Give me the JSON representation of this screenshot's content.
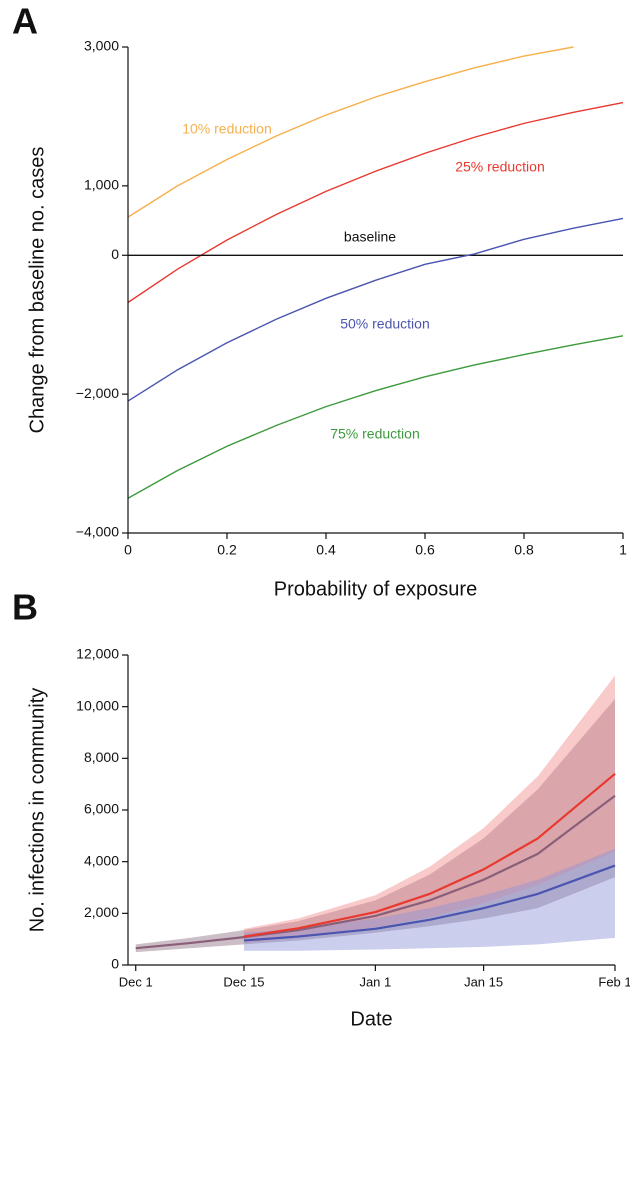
{
  "chart_data": [
    {
      "type": "line",
      "panel": "A",
      "y_label": "Change from baseline no. cases",
      "x_label": "Probability of exposure",
      "xlim": [
        0,
        1
      ],
      "xticks": [
        0,
        0.2,
        0.4,
        0.6,
        0.8,
        1
      ],
      "ylim": [
        -4000,
        3000
      ],
      "yticks": [
        {
          "value": -4000,
          "label": "−4,000"
        },
        {
          "value": -2000,
          "label": "−2,000"
        },
        0,
        {
          "value": 1000,
          "label": "1,000"
        },
        {
          "value": 3000,
          "label": "3,000"
        }
      ],
      "x": [
        0,
        0.1,
        0.2,
        0.3,
        0.4,
        0.5,
        0.6,
        0.7,
        0.8,
        0.9,
        1
      ],
      "series": [
        {
          "name": "10% reduction",
          "color": "#f6b04c",
          "values": [
            550,
            1000,
            1380,
            1720,
            2020,
            2280,
            2500,
            2700,
            2870,
            3000,
            null
          ]
        },
        {
          "name": "25% reduction",
          "color": "#e8392f",
          "values": [
            -680,
            -200,
            220,
            590,
            920,
            1210,
            1470,
            1700,
            1900,
            2060,
            2200
          ]
        },
        {
          "name": "baseline",
          "color": "#111111",
          "values": [
            0,
            0,
            0,
            0,
            0,
            0,
            0,
            0,
            0,
            0,
            0
          ]
        },
        {
          "name": "50% reduction",
          "color": "#4a55b0",
          "values": [
            -2100,
            -1650,
            -1260,
            -920,
            -620,
            -360,
            -130,
            20,
            230,
            390,
            530
          ]
        },
        {
          "name": "75% reduction",
          "color": "#3d9a3d",
          "values": [
            -3500,
            -3100,
            -2750,
            -2450,
            -2180,
            -1950,
            -1750,
            -1580,
            -1430,
            -1290,
            -1160
          ]
        }
      ]
    },
    {
      "type": "line",
      "panel": "B",
      "y_label": "No. infections in community",
      "x_label": "Date",
      "xlim": [
        "Nov 30",
        "Feb 1"
      ],
      "xticks": [
        "Dec 1",
        "Dec 15",
        "Jan 1",
        "Jan 15",
        "Feb 1"
      ],
      "ylim": [
        0,
        12000
      ],
      "yticks": [
        0,
        {
          "value": 2000,
          "label": "2,000"
        },
        {
          "value": 4000,
          "label": "4,000"
        },
        {
          "value": 6000,
          "label": "6,000"
        },
        {
          "value": 8000,
          "label": "8,000"
        },
        {
          "value": 10000,
          "label": "10,000"
        },
        {
          "value": 12000,
          "label": "12,000"
        }
      ],
      "x": [
        "Dec 1",
        "Dec 8",
        "Dec 15",
        "Dec 22",
        "Jan 1",
        "Jan 8",
        "Jan 15",
        "Jan 22",
        "Feb 1"
      ],
      "series": [
        {
          "color": "#8a5f7a",
          "values": [
            650,
            850,
            1080,
            1350,
            1900,
            2500,
            3300,
            4300,
            6550
          ],
          "lower": [
            500,
            650,
            800,
            950,
            1250,
            1500,
            1800,
            2200,
            3400
          ],
          "upper": [
            800,
            1050,
            1350,
            1700,
            2500,
            3500,
            4900,
            6800,
            10300
          ]
        },
        {
          "color": "#e8392f",
          "values": [
            null,
            null,
            1100,
            1420,
            2050,
            2750,
            3700,
            4900,
            7400
          ],
          "lower": [
            null,
            null,
            850,
            1050,
            1450,
            1850,
            2400,
            3100,
            4400
          ],
          "upper": [
            null,
            null,
            1400,
            1800,
            2700,
            3800,
            5300,
            7300,
            11200
          ]
        },
        {
          "color": "#4a55b0",
          "values": [
            null,
            null,
            950,
            1100,
            1400,
            1750,
            2200,
            2750,
            3850
          ],
          "lower": [
            null,
            null,
            550,
            550,
            600,
            650,
            700,
            800,
            1050
          ],
          "upper": [
            null,
            null,
            1250,
            1400,
            1800,
            2200,
            2700,
            3300,
            4500
          ]
        }
      ]
    }
  ]
}
